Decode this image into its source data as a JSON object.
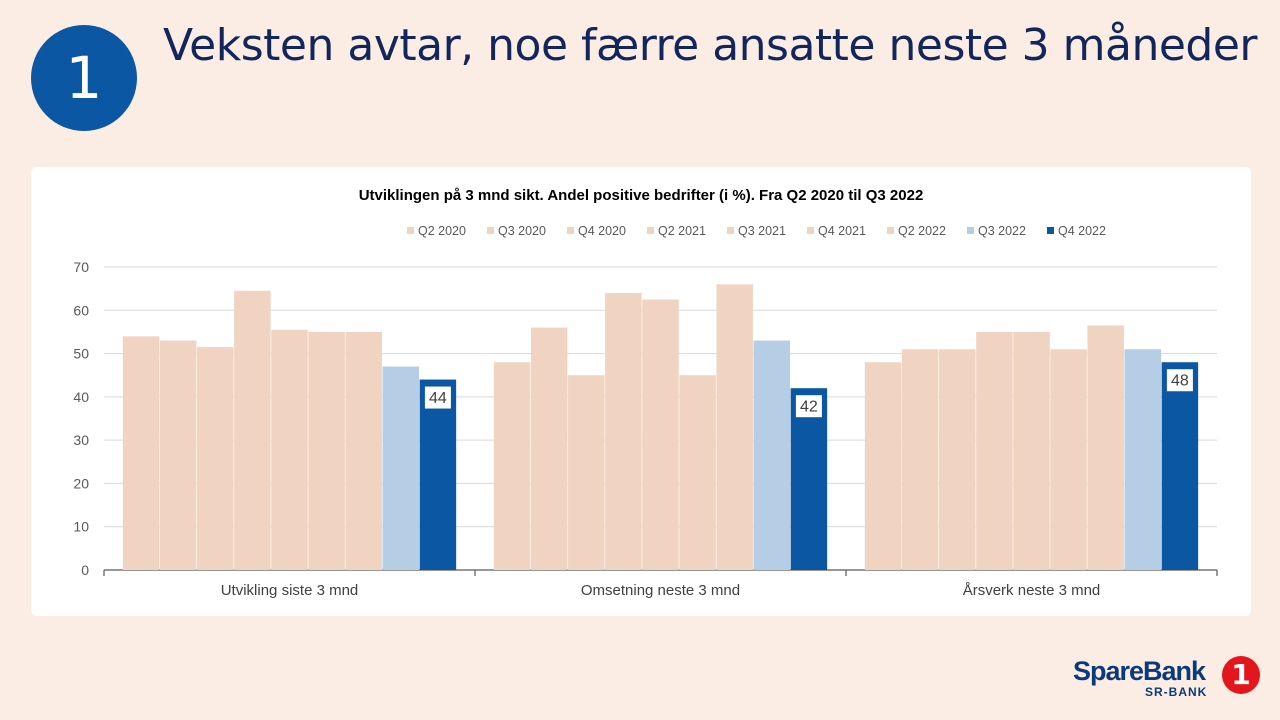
{
  "badge": {
    "number": "1"
  },
  "slide": {
    "title": "Veksten avtar, noe færre ansatte neste 3 måneder"
  },
  "logo": {
    "name": "SpareBank",
    "sub": "SR-BANK",
    "mark": "1"
  },
  "colors": {
    "background": "#fbede4",
    "accent": "#0b57a4",
    "peach": "#f0d4c1",
    "light_blue": "#b6cde6",
    "dark_blue": "#0b57a4",
    "title": "#13265c"
  },
  "chart_data": {
    "type": "bar",
    "title": "Utviklingen på 3 mnd sikt. Andel positive bedrifter (i %). Fra Q2 2020 til Q3 2022",
    "categories": [
      "Utvikling siste 3 mnd",
      "Omsetning neste 3 mnd",
      "Årsverk neste 3 mnd"
    ],
    "series": [
      {
        "name": "Q2 2020",
        "color": "#f0d4c1",
        "values": [
          54,
          48,
          48
        ]
      },
      {
        "name": "Q3 2020",
        "color": "#f0d4c1",
        "values": [
          53,
          56,
          51
        ]
      },
      {
        "name": "Q4 2020",
        "color": "#f0d4c1",
        "values": [
          51.5,
          45,
          51
        ]
      },
      {
        "name": "Q2 2021",
        "color": "#f0d4c1",
        "values": [
          64.5,
          64,
          55
        ]
      },
      {
        "name": "Q3 2021",
        "color": "#f0d4c1",
        "values": [
          55.5,
          62.5,
          55
        ]
      },
      {
        "name": "Q4 2021",
        "color": "#f0d4c1",
        "values": [
          55,
          45,
          51
        ]
      },
      {
        "name": "Q2 2022",
        "color": "#f0d4c1",
        "values": [
          55,
          66,
          56.5
        ]
      },
      {
        "name": "Q3 2022",
        "color": "#b6cde6",
        "values": [
          47,
          53,
          51
        ]
      },
      {
        "name": "Q4 2022",
        "color": "#0b57a4",
        "values": [
          44,
          42,
          48
        ],
        "labels": [
          "44",
          "42",
          "48"
        ]
      }
    ],
    "ylim": [
      0,
      70
    ],
    "yticks": [
      0,
      10,
      20,
      30,
      40,
      50,
      60,
      70
    ],
    "grid": true,
    "legend": "top"
  }
}
